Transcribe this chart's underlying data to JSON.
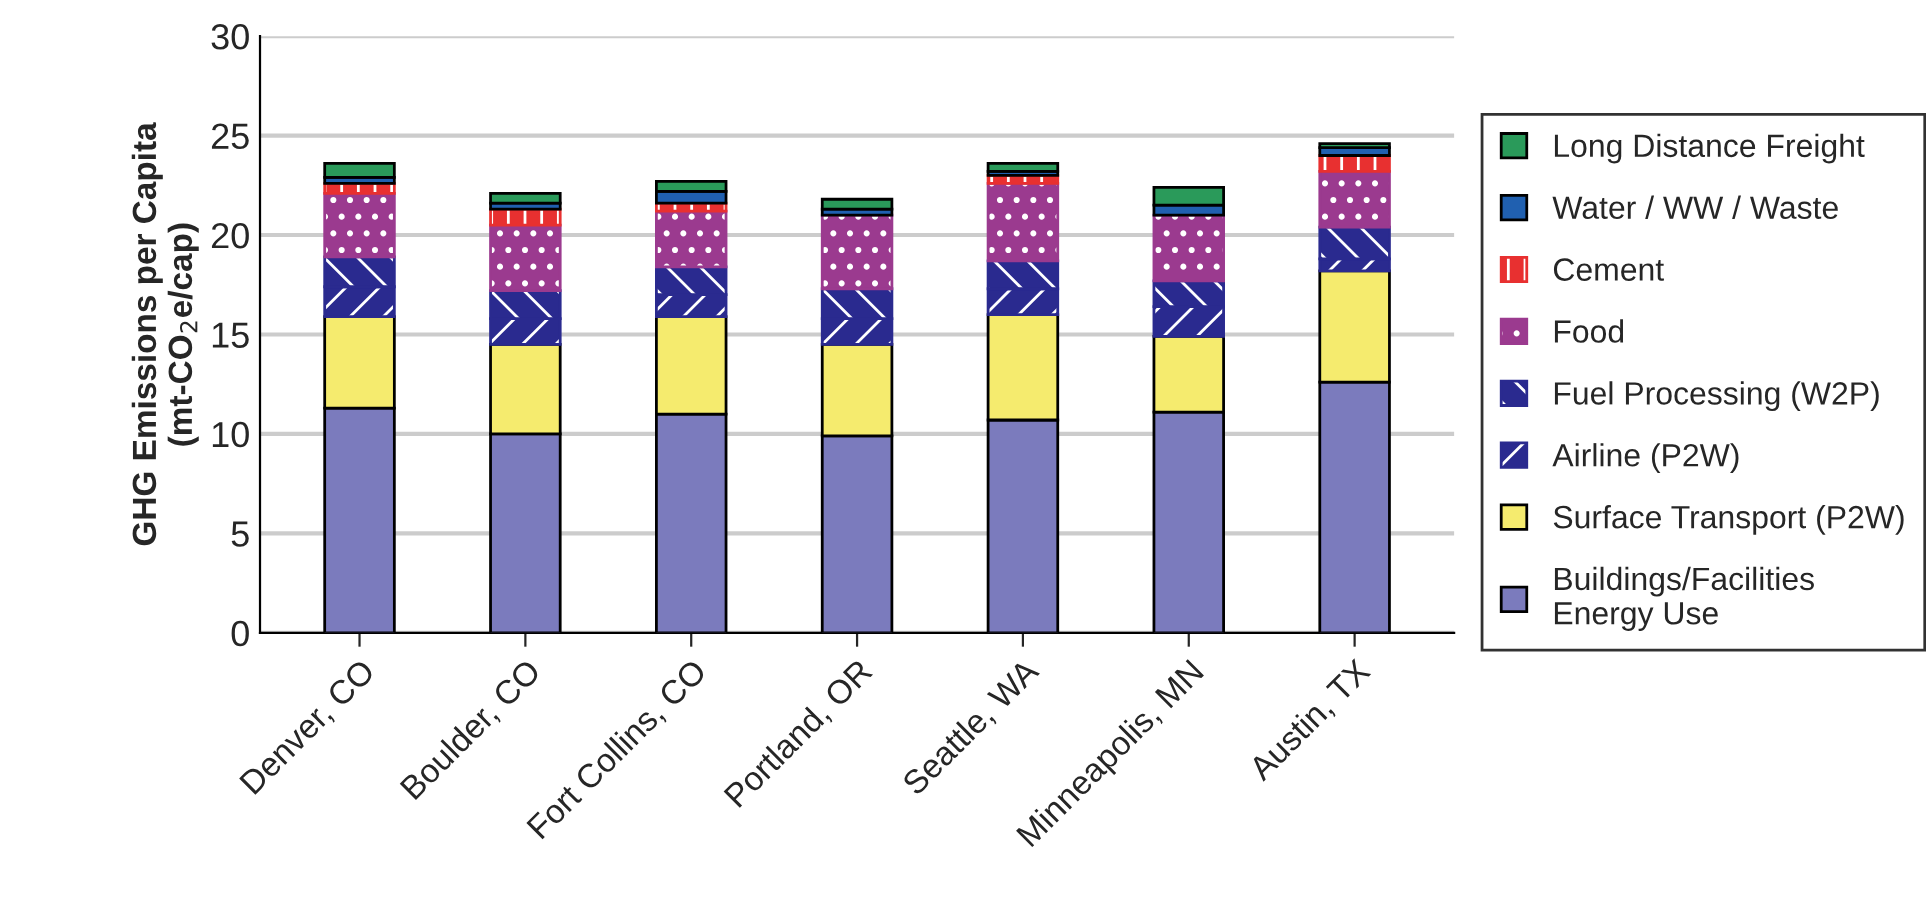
{
  "chart_data": {
    "type": "bar",
    "stacked": true,
    "ylabel": "GHG Emissions per Capita\n(mt-CO$_{2}$e/cap)",
    "categories": [
      "Denver, CO",
      "Boulder, CO",
      "Fort Collins, CO",
      "Portland, OR",
      "Seattle, WA",
      "Minneapolis, MN",
      "Austin, TX"
    ],
    "series": [
      {
        "name": "Buildings/Facilities\nEnergy Use",
        "color": "#7b7bbd",
        "values": [
          11.3,
          10.0,
          11.0,
          9.9,
          10.7,
          11.1,
          12.6
        ]
      },
      {
        "name": "Surface Transport (P2W)",
        "color": "#f5eb6e",
        "values": [
          4.6,
          4.5,
          4.9,
          4.6,
          5.3,
          3.8,
          5.6
        ]
      },
      {
        "name": "Airline (P2W)",
        "color": "#2a2a8f",
        "values": [
          1.5,
          1.3,
          1.1,
          1.3,
          1.3,
          1.5,
          0.6
        ]
      },
      {
        "name": "Fuel Processing (W2P)",
        "color": "#2a2a8f",
        "values": [
          1.5,
          1.4,
          1.4,
          1.5,
          1.4,
          1.3,
          1.6
        ]
      },
      {
        "name": "Food",
        "color": "#9b3a8f",
        "values": [
          3.2,
          3.3,
          2.8,
          3.7,
          3.9,
          3.3,
          2.8
        ]
      },
      {
        "name": "Cement",
        "color": "#e83030",
        "values": [
          0.5,
          0.8,
          0.4,
          null,
          0.4,
          null,
          0.8
        ]
      },
      {
        "name": "Water / WW / Waste",
        "color": "#2060b0",
        "values": [
          0.3,
          0.3,
          0.6,
          0.3,
          0.2,
          0.5,
          0.4
        ]
      },
      {
        "name": "Long Distance Freight",
        "color": "#2a9a5a",
        "values": [
          0.7,
          0.5,
          0.5,
          0.5,
          0.4,
          0.9,
          0.2
        ]
      }
    ],
    "ylim": [
      0,
      30
    ],
    "yticks": [
      0,
      5,
      10,
      15,
      20,
      25,
      30
    ],
    "grid": "y",
    "legend": "right"
  }
}
